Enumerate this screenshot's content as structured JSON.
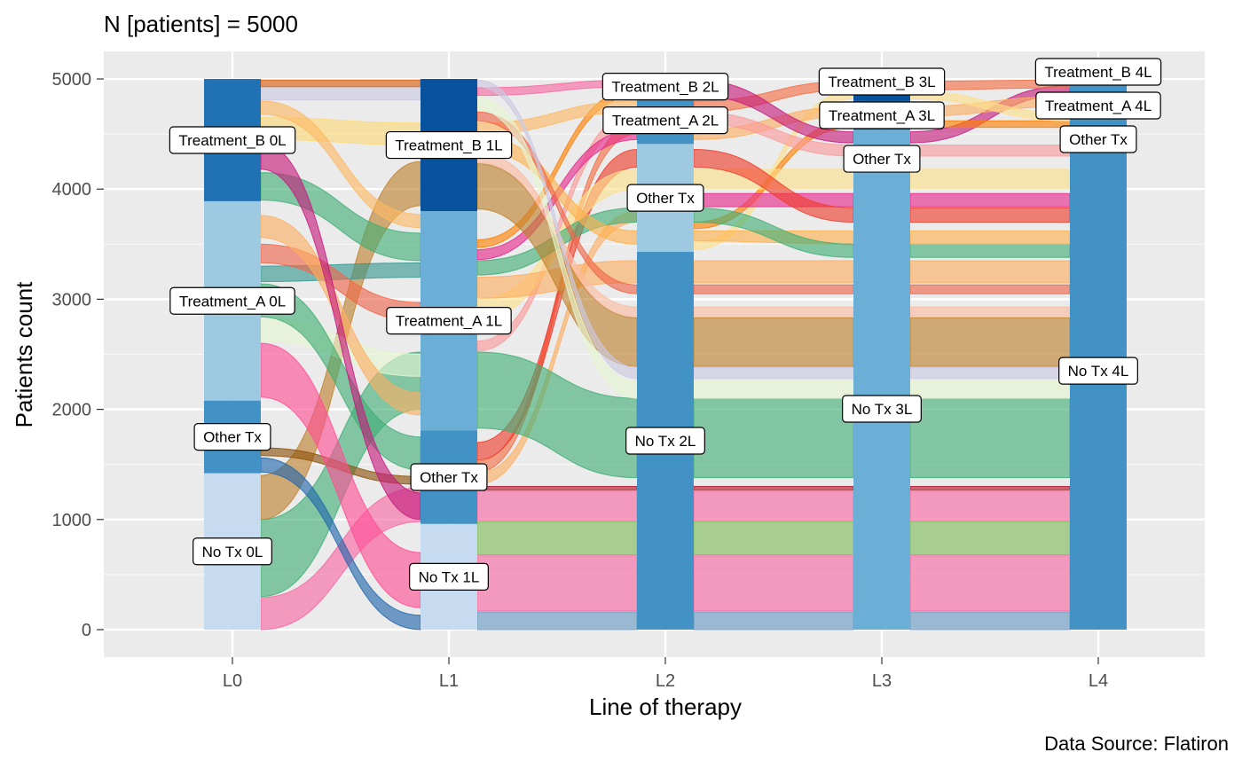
{
  "chart_data": {
    "type": "alluvial",
    "title": "N [patients] = 5000",
    "caption": "Data Source: Flatiron",
    "xlabel": "Line of therapy",
    "ylabel": "Patients count",
    "categories": [
      "L0",
      "L1",
      "L2",
      "L3",
      "L4"
    ],
    "y_ticks": [
      0,
      1000,
      2000,
      3000,
      4000,
      5000
    ],
    "ylim": [
      -250,
      5250
    ],
    "grid": true,
    "stacks": [
      {
        "stage": "L0",
        "nodes": [
          {
            "label": "No Tx 0L",
            "lo": 0,
            "hi": 1420,
            "color": "#c6dbef"
          },
          {
            "label": "Other Tx",
            "lo": 1420,
            "hi": 2080,
            "color": "#4292c6"
          },
          {
            "label": "Treatment_A 0L",
            "lo": 2080,
            "hi": 3890,
            "color": "#9ecae1"
          },
          {
            "label": "Treatment_B 0L",
            "lo": 3890,
            "hi": 5000,
            "color": "#2171b5"
          }
        ]
      },
      {
        "stage": "L1",
        "nodes": [
          {
            "label": "No Tx 1L",
            "lo": 0,
            "hi": 960,
            "color": "#c6dbef"
          },
          {
            "label": "Other Tx",
            "lo": 960,
            "hi": 1810,
            "color": "#4292c6"
          },
          {
            "label": "Treatment_A 1L",
            "lo": 1810,
            "hi": 3800,
            "color": "#6baed6"
          },
          {
            "label": "Treatment_B 1L",
            "lo": 3800,
            "hi": 5000,
            "color": "#08519c"
          }
        ]
      },
      {
        "stage": "L2",
        "nodes": [
          {
            "label": "No Tx 2L",
            "lo": 0,
            "hi": 3430,
            "color": "#4292c6"
          },
          {
            "label": "Other Tx",
            "lo": 3430,
            "hi": 4410,
            "color": "#9ecae1"
          },
          {
            "label": "Treatment_A 2L",
            "lo": 4410,
            "hi": 4840,
            "color": "#4292c6"
          },
          {
            "label": "Treatment_B 2L",
            "lo": 4840,
            "hi": 5000,
            "color": "#2171b5"
          }
        ]
      },
      {
        "stage": "L3",
        "nodes": [
          {
            "label": "No Tx 3L",
            "lo": 0,
            "hi": 4010,
            "color": "#6baed6"
          },
          {
            "label": "Other Tx",
            "lo": 4010,
            "hi": 4540,
            "color": "#6baed6"
          },
          {
            "label": "Treatment_A 3L",
            "lo": 4540,
            "hi": 4800,
            "color": "#08519c"
          },
          {
            "label": "Treatment_B 3L",
            "lo": 4800,
            "hi": 5000,
            "color": "#08519c"
          }
        ]
      },
      {
        "stage": "L4",
        "nodes": [
          {
            "label": "No Tx 4L",
            "lo": 0,
            "hi": 4700,
            "color": "#4292c6"
          },
          {
            "label": "Other Tx",
            "lo": 4700,
            "hi": 4840,
            "color": "#4292c6"
          },
          {
            "label": "Treatment_A 4L",
            "lo": 4840,
            "hi": 4920,
            "color": "#4292c6"
          },
          {
            "label": "Treatment_B 4L",
            "lo": 4920,
            "hi": 5000,
            "color": "#4292c6"
          }
        ]
      }
    ],
    "flows": [
      {
        "from_stage": 0,
        "y0a": 0,
        "y0b": 290,
        "y1a": 980,
        "y1b": 1290,
        "color": "#f768a1"
      },
      {
        "from_stage": 0,
        "y0a": 300,
        "y0b": 1000,
        "y1a": 2000,
        "y1b": 2520,
        "color": "#41ae76"
      },
      {
        "from_stage": 0,
        "y0a": 1000,
        "y0b": 1400,
        "y1a": 3850,
        "y1b": 4250,
        "color": "#bf812d"
      },
      {
        "from_stage": 0,
        "y0a": 1430,
        "y0b": 1560,
        "y1a": 0,
        "y1b": 130,
        "color": "#2166ac"
      },
      {
        "from_stage": 0,
        "y0a": 1580,
        "y0b": 1650,
        "y1a": 1320,
        "y1b": 1390,
        "color": "#8c510a"
      },
      {
        "from_stage": 0,
        "y0a": 2110,
        "y0b": 2600,
        "y1a": 200,
        "y1b": 700,
        "color": "#ff4d94"
      },
      {
        "from_stage": 0,
        "y0a": 2620,
        "y0b": 2820,
        "y1a": 2300,
        "y1b": 2500,
        "color": "#e6f5d0"
      },
      {
        "from_stage": 0,
        "y0a": 2840,
        "y0b": 3140,
        "y1a": 1450,
        "y1b": 1750,
        "color": "#41ae76"
      },
      {
        "from_stage": 0,
        "y0a": 3160,
        "y0b": 3300,
        "y1a": 3200,
        "y1b": 3330,
        "color": "#35978f"
      },
      {
        "from_stage": 0,
        "y0a": 3330,
        "y0b": 3500,
        "y1a": 2800,
        "y1b": 2970,
        "color": "#ef6548"
      },
      {
        "from_stage": 0,
        "y0a": 3560,
        "y0b": 3760,
        "y1a": 1950,
        "y1b": 2150,
        "color": "#fdae61"
      },
      {
        "from_stage": 0,
        "y0a": 3900,
        "y0b": 4150,
        "y1a": 3350,
        "y1b": 3600,
        "color": "#41ae76"
      },
      {
        "from_stage": 0,
        "y0a": 4180,
        "y0b": 4420,
        "y1a": 1000,
        "y1b": 1240,
        "color": "#c51b7d"
      },
      {
        "from_stage": 0,
        "y0a": 4450,
        "y0b": 4650,
        "y1a": 4400,
        "y1b": 4600,
        "color": "#fed976"
      },
      {
        "from_stage": 0,
        "y0a": 4680,
        "y0b": 4800,
        "y1a": 3650,
        "y1b": 3770,
        "color": "#fdb863"
      },
      {
        "from_stage": 0,
        "y0a": 4810,
        "y0b": 4920,
        "y1a": 4810,
        "y1b": 4920,
        "color": "#cbc9e2"
      },
      {
        "from_stage": 0,
        "y0a": 4930,
        "y0b": 4990,
        "y1a": 4930,
        "y1b": 4990,
        "color": "#d95f0e"
      },
      {
        "from_stage": 1,
        "y0a": 0,
        "y0b": 160,
        "y1a": 0,
        "y1b": 160,
        "color": "#6a9ac4"
      },
      {
        "from_stage": 1,
        "y0a": 170,
        "y0b": 670,
        "y1a": 170,
        "y1b": 670,
        "color": "#f768a1"
      },
      {
        "from_stage": 1,
        "y0a": 680,
        "y0b": 980,
        "y1a": 680,
        "y1b": 980,
        "color": "#7fbc5a"
      },
      {
        "from_stage": 1,
        "y0a": 990,
        "y0b": 1260,
        "y1a": 990,
        "y1b": 1260,
        "color": "#f768a1"
      },
      {
        "from_stage": 1,
        "y0a": 1270,
        "y0b": 1300,
        "y1a": 1270,
        "y1b": 1300,
        "color": "#b2182b"
      },
      {
        "from_stage": 1,
        "y0a": 1320,
        "y0b": 1420,
        "y1a": 3700,
        "y1b": 3800,
        "color": "#fdae61"
      },
      {
        "from_stage": 1,
        "y0a": 1430,
        "y0b": 1530,
        "y1a": 4500,
        "y1b": 4600,
        "color": "#f46d43"
      },
      {
        "from_stage": 1,
        "y0a": 1540,
        "y0b": 1700,
        "y1a": 4200,
        "y1b": 4360,
        "color": "#ef3b2c"
      },
      {
        "from_stage": 1,
        "y0a": 1830,
        "y0b": 2520,
        "y1a": 1380,
        "y1b": 2100,
        "color": "#41ae76"
      },
      {
        "from_stage": 1,
        "y0a": 2530,
        "y0b": 2620,
        "y1a": 4600,
        "y1b": 4700,
        "color": "#fb9a99"
      },
      {
        "from_stage": 1,
        "y0a": 2820,
        "y0b": 3000,
        "y1a": 4000,
        "y1b": 4180,
        "color": "#fee08b"
      },
      {
        "from_stage": 1,
        "y0a": 3010,
        "y0b": 3200,
        "y1a": 3150,
        "y1b": 3350,
        "color": "#fdae61"
      },
      {
        "from_stage": 1,
        "y0a": 3220,
        "y0b": 3350,
        "y1a": 3700,
        "y1b": 3830,
        "color": "#41ae76"
      },
      {
        "from_stage": 1,
        "y0a": 3360,
        "y0b": 3450,
        "y1a": 4450,
        "y1b": 4540,
        "color": "#e7298a"
      },
      {
        "from_stage": 1,
        "y0a": 3470,
        "y0b": 3540,
        "y1a": 4850,
        "y1b": 4920,
        "color": "#ff7f00"
      },
      {
        "from_stage": 1,
        "y0a": 3820,
        "y0b": 4230,
        "y1a": 2390,
        "y1b": 2830,
        "color": "#bf812d"
      },
      {
        "from_stage": 1,
        "y0a": 4240,
        "y0b": 4330,
        "y1a": 2840,
        "y1b": 2930,
        "color": "#fcbba1"
      },
      {
        "from_stage": 1,
        "y0a": 4350,
        "y0b": 4480,
        "y1a": 3500,
        "y1b": 3620,
        "color": "#feb24c"
      },
      {
        "from_stage": 1,
        "y0a": 4500,
        "y0b": 4600,
        "y1a": 4700,
        "y1b": 4800,
        "color": "#fdb863"
      },
      {
        "from_stage": 1,
        "y0a": 4620,
        "y0b": 4700,
        "y1a": 3050,
        "y1b": 3130,
        "color": "#ef6548"
      },
      {
        "from_stage": 1,
        "y0a": 4720,
        "y0b": 4830,
        "y1a": 2100,
        "y1b": 2250,
        "color": "#e6f5d0"
      },
      {
        "from_stage": 1,
        "y0a": 4850,
        "y0b": 4920,
        "y1a": 4930,
        "y1b": 4990,
        "color": "#f768a1"
      },
      {
        "from_stage": 1,
        "y0a": 4930,
        "y0b": 4990,
        "y1a": 2280,
        "y1b": 2380,
        "color": "#cbc9e2"
      },
      {
        "from_stage": 2,
        "y0a": 0,
        "y0b": 160,
        "y1a": 0,
        "y1b": 160,
        "color": "#6a9ac4"
      },
      {
        "from_stage": 2,
        "y0a": 170,
        "y0b": 670,
        "y1a": 170,
        "y1b": 670,
        "color": "#f768a1"
      },
      {
        "from_stage": 2,
        "y0a": 680,
        "y0b": 980,
        "y1a": 680,
        "y1b": 980,
        "color": "#7fbc5a"
      },
      {
        "from_stage": 2,
        "y0a": 990,
        "y0b": 1260,
        "y1a": 990,
        "y1b": 1260,
        "color": "#f768a1"
      },
      {
        "from_stage": 2,
        "y0a": 1270,
        "y0b": 1300,
        "y1a": 1270,
        "y1b": 1300,
        "color": "#b2182b"
      },
      {
        "from_stage": 2,
        "y0a": 1380,
        "y0b": 2100,
        "y1a": 1380,
        "y1b": 2100,
        "color": "#41ae76"
      },
      {
        "from_stage": 2,
        "y0a": 2100,
        "y0b": 2250,
        "y1a": 2100,
        "y1b": 2250,
        "color": "#e6f5d0"
      },
      {
        "from_stage": 2,
        "y0a": 2280,
        "y0b": 2380,
        "y1a": 2280,
        "y1b": 2380,
        "color": "#cbc9e2"
      },
      {
        "from_stage": 2,
        "y0a": 2390,
        "y0b": 2830,
        "y1a": 2390,
        "y1b": 2830,
        "color": "#bf812d"
      },
      {
        "from_stage": 2,
        "y0a": 2840,
        "y0b": 2930,
        "y1a": 2840,
        "y1b": 2930,
        "color": "#fcbba1"
      },
      {
        "from_stage": 2,
        "y0a": 3050,
        "y0b": 3130,
        "y1a": 3050,
        "y1b": 3130,
        "color": "#ef6548"
      },
      {
        "from_stage": 2,
        "y0a": 3150,
        "y0b": 3350,
        "y1a": 3150,
        "y1b": 3350,
        "color": "#fdae61"
      },
      {
        "from_stage": 2,
        "y0a": 3450,
        "y0b": 3520,
        "y1a": 4820,
        "y1b": 4890,
        "color": "#fee08b"
      },
      {
        "from_stage": 2,
        "y0a": 3530,
        "y0b": 3620,
        "y1a": 3500,
        "y1b": 3620,
        "color": "#feb24c"
      },
      {
        "from_stage": 2,
        "y0a": 3640,
        "y0b": 3700,
        "y1a": 4560,
        "y1b": 4620,
        "color": "#ff7f00"
      },
      {
        "from_stage": 2,
        "y0a": 3700,
        "y0b": 3830,
        "y1a": 3380,
        "y1b": 3500,
        "color": "#41ae76"
      },
      {
        "from_stage": 2,
        "y0a": 3840,
        "y0b": 3960,
        "y1a": 3840,
        "y1b": 3960,
        "color": "#e7298a"
      },
      {
        "from_stage": 2,
        "y0a": 4000,
        "y0b": 4180,
        "y1a": 4000,
        "y1b": 4180,
        "color": "#fee08b"
      },
      {
        "from_stage": 2,
        "y0a": 4200,
        "y0b": 4360,
        "y1a": 3700,
        "y1b": 3830,
        "color": "#ef3b2c"
      },
      {
        "from_stage": 2,
        "y0a": 4450,
        "y0b": 4540,
        "y1a": 4660,
        "y1b": 4750,
        "color": "#fdae61"
      },
      {
        "from_stage": 2,
        "y0a": 4600,
        "y0b": 4700,
        "y1a": 4300,
        "y1b": 4400,
        "color": "#fb9a99"
      },
      {
        "from_stage": 2,
        "y0a": 4700,
        "y0b": 4800,
        "y1a": 4900,
        "y1b": 4980,
        "color": "#f46d43"
      },
      {
        "from_stage": 2,
        "y0a": 4850,
        "y0b": 4990,
        "y1a": 4420,
        "y1b": 4520,
        "color": "#c51b7d"
      },
      {
        "from_stage": 3,
        "y0a": 0,
        "y0b": 160,
        "y1a": 0,
        "y1b": 160,
        "color": "#6a9ac4"
      },
      {
        "from_stage": 3,
        "y0a": 170,
        "y0b": 670,
        "y1a": 170,
        "y1b": 670,
        "color": "#f768a1"
      },
      {
        "from_stage": 3,
        "y0a": 680,
        "y0b": 980,
        "y1a": 680,
        "y1b": 980,
        "color": "#7fbc5a"
      },
      {
        "from_stage": 3,
        "y0a": 990,
        "y0b": 1260,
        "y1a": 990,
        "y1b": 1260,
        "color": "#f768a1"
      },
      {
        "from_stage": 3,
        "y0a": 1270,
        "y0b": 1300,
        "y1a": 1270,
        "y1b": 1300,
        "color": "#b2182b"
      },
      {
        "from_stage": 3,
        "y0a": 1380,
        "y0b": 2100,
        "y1a": 1380,
        "y1b": 2100,
        "color": "#41ae76"
      },
      {
        "from_stage": 3,
        "y0a": 2100,
        "y0b": 2250,
        "y1a": 2100,
        "y1b": 2250,
        "color": "#e6f5d0"
      },
      {
        "from_stage": 3,
        "y0a": 2280,
        "y0b": 2380,
        "y1a": 2280,
        "y1b": 2380,
        "color": "#cbc9e2"
      },
      {
        "from_stage": 3,
        "y0a": 2390,
        "y0b": 2830,
        "y1a": 2390,
        "y1b": 2830,
        "color": "#bf812d"
      },
      {
        "from_stage": 3,
        "y0a": 2840,
        "y0b": 2930,
        "y1a": 2840,
        "y1b": 2930,
        "color": "#fcbba1"
      },
      {
        "from_stage": 3,
        "y0a": 3050,
        "y0b": 3130,
        "y1a": 3050,
        "y1b": 3130,
        "color": "#ef6548"
      },
      {
        "from_stage": 3,
        "y0a": 3150,
        "y0b": 3350,
        "y1a": 3150,
        "y1b": 3350,
        "color": "#fdae61"
      },
      {
        "from_stage": 3,
        "y0a": 3380,
        "y0b": 3500,
        "y1a": 3380,
        "y1b": 3500,
        "color": "#41ae76"
      },
      {
        "from_stage": 3,
        "y0a": 3500,
        "y0b": 3620,
        "y1a": 3500,
        "y1b": 3620,
        "color": "#feb24c"
      },
      {
        "from_stage": 3,
        "y0a": 3700,
        "y0b": 3830,
        "y1a": 3700,
        "y1b": 3830,
        "color": "#ef3b2c"
      },
      {
        "from_stage": 3,
        "y0a": 3840,
        "y0b": 3960,
        "y1a": 3840,
        "y1b": 3960,
        "color": "#e7298a"
      },
      {
        "from_stage": 3,
        "y0a": 4000,
        "y0b": 4180,
        "y1a": 4000,
        "y1b": 4180,
        "color": "#fee08b"
      },
      {
        "from_stage": 3,
        "y0a": 4300,
        "y0b": 4400,
        "y1a": 4300,
        "y1b": 4400,
        "color": "#fb9a99"
      },
      {
        "from_stage": 3,
        "y0a": 4420,
        "y0b": 4520,
        "y1a": 4860,
        "y1b": 4940,
        "color": "#c51b7d"
      },
      {
        "from_stage": 3,
        "y0a": 4560,
        "y0b": 4620,
        "y1a": 4560,
        "y1b": 4620,
        "color": "#ff7f00"
      },
      {
        "from_stage": 3,
        "y0a": 4660,
        "y0b": 4750,
        "y1a": 4750,
        "y1b": 4840,
        "color": "#fdae61"
      },
      {
        "from_stage": 3,
        "y0a": 4820,
        "y0b": 4890,
        "y1a": 4620,
        "y1b": 4690,
        "color": "#fee08b"
      },
      {
        "from_stage": 3,
        "y0a": 4900,
        "y0b": 4980,
        "y1a": 4920,
        "y1b": 4990,
        "color": "#f46d43"
      }
    ]
  }
}
